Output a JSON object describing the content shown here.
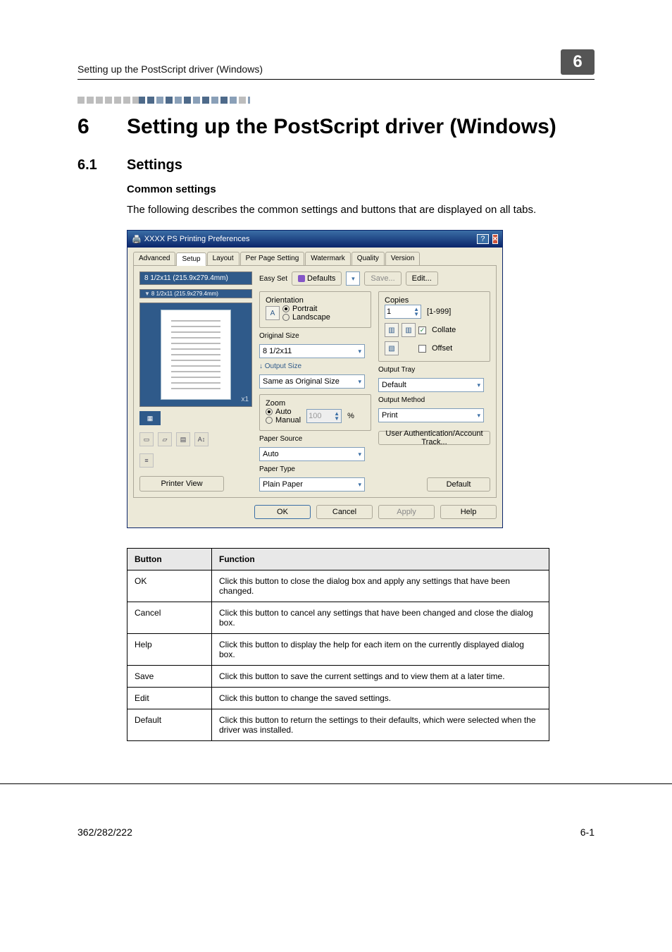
{
  "header": {
    "running_head": "Setting up the PostScript driver (Windows)",
    "chapter_number": "6"
  },
  "heading1": {
    "num": "6",
    "text": "Setting up the PostScript driver (Windows)"
  },
  "heading2": {
    "num": "6.1",
    "text": "Settings"
  },
  "subheading": "Common settings",
  "body_paragraph": "The following describes the common settings and buttons that are displayed on all tabs.",
  "dialog": {
    "title": "XXXX PS Printing Preferences",
    "tabs": [
      "Advanced",
      "Setup",
      "Layout",
      "Per Page Setting",
      "Watermark",
      "Quality",
      "Version"
    ],
    "active_tab": "Setup",
    "preview": {
      "band1": "8 1/2x11 (215.9x279.4mm)",
      "band2": "8 1/2x11 (215.9x279.4mm)",
      "arrow_icon": "▼",
      "change_icon": "x1",
      "printer_view_btn": "Printer View"
    },
    "easy_set": {
      "label": "Easy Set",
      "defaults_btn": "Defaults",
      "save_btn": "Save...",
      "edit_btn": "Edit..."
    },
    "orientation": {
      "legend": "Orientation",
      "portrait": "Portrait",
      "landscape": "Landscape"
    },
    "original_size": {
      "label": "Original Size",
      "value": "8 1/2x11"
    },
    "output_size": {
      "label": "Output Size",
      "value": "Same as Original Size"
    },
    "zoom": {
      "legend": "Zoom",
      "auto": "Auto",
      "manual": "Manual",
      "manual_value": "100",
      "manual_unit": "%"
    },
    "paper_source": {
      "label": "Paper Source",
      "value": "Auto"
    },
    "paper_type": {
      "label": "Paper Type",
      "value": "Plain Paper"
    },
    "copies": {
      "legend": "Copies",
      "value": "1",
      "range": "[1-999]",
      "collate_label": "Collate",
      "collate_checked": true,
      "offset_label": "Offset",
      "offset_checked": false
    },
    "output_tray": {
      "label": "Output Tray",
      "value": "Default"
    },
    "output_method": {
      "label": "Output Method",
      "value": "Print"
    },
    "user_auth_btn": "User Authentication/Account Track...",
    "default_btn": "Default",
    "bottom_buttons": {
      "ok": "OK",
      "cancel": "Cancel",
      "apply": "Apply",
      "help": "Help"
    }
  },
  "table": {
    "headers": [
      "Button",
      "Function"
    ],
    "rows": [
      [
        "OK",
        "Click this button to close the dialog box and apply any settings that have been changed."
      ],
      [
        "Cancel",
        "Click this button to cancel any settings that have been changed and close the dialog box."
      ],
      [
        "Help",
        "Click this button to display the help for each item on the currently displayed dialog box."
      ],
      [
        "Save",
        "Click this button to save the current settings and to view them at a later time."
      ],
      [
        "Edit",
        "Click this button to change the saved settings."
      ],
      [
        "Default",
        "Click this button to return the settings to their defaults, which were selected when the driver was installed."
      ]
    ]
  },
  "footer": {
    "left": "362/282/222",
    "right": "6-1"
  }
}
